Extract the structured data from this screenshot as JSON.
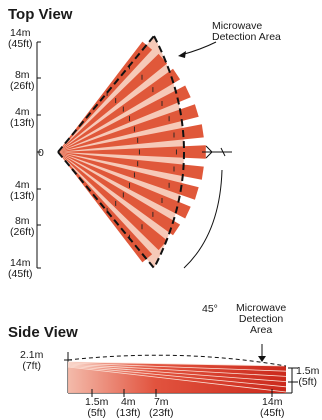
{
  "top_view": {
    "title": "Top View",
    "area_label_line1": "Microwave",
    "area_label_line2": "Detection Area",
    "angle_label": "45°",
    "left_axis": [
      {
        "m": "14m",
        "ft": "(45ft)"
      },
      {
        "m": "8m",
        "ft": "(26ft)"
      },
      {
        "m": "4m",
        "ft": "(13ft)"
      },
      {
        "m": "0",
        "ft": ""
      },
      {
        "m": "4m",
        "ft": "(13ft)"
      },
      {
        "m": "8m",
        "ft": "(26ft)"
      },
      {
        "m": "14m",
        "ft": "(45ft)"
      }
    ]
  },
  "side_view": {
    "title": "Side View",
    "area_label_line1": "Microwave",
    "area_label_line2": "Detection",
    "area_label_line3": "Area",
    "height_left": {
      "m": "2.1m",
      "ft": "(7ft)"
    },
    "height_right": {
      "m": "1.5m",
      "ft": "(5ft)"
    },
    "bottom_axis": [
      {
        "m": "1.5m",
        "ft": "(5ft)"
      },
      {
        "m": "4m",
        "ft": "(13ft)"
      },
      {
        "m": "7m",
        "ft": "(23ft)"
      },
      {
        "m": "14m",
        "ft": "(45ft)"
      }
    ]
  },
  "colors": {
    "beam": "#e0583a",
    "beam_light": "#f6c9b8",
    "side_beam": "#d92a1a",
    "outline": "#111111"
  }
}
